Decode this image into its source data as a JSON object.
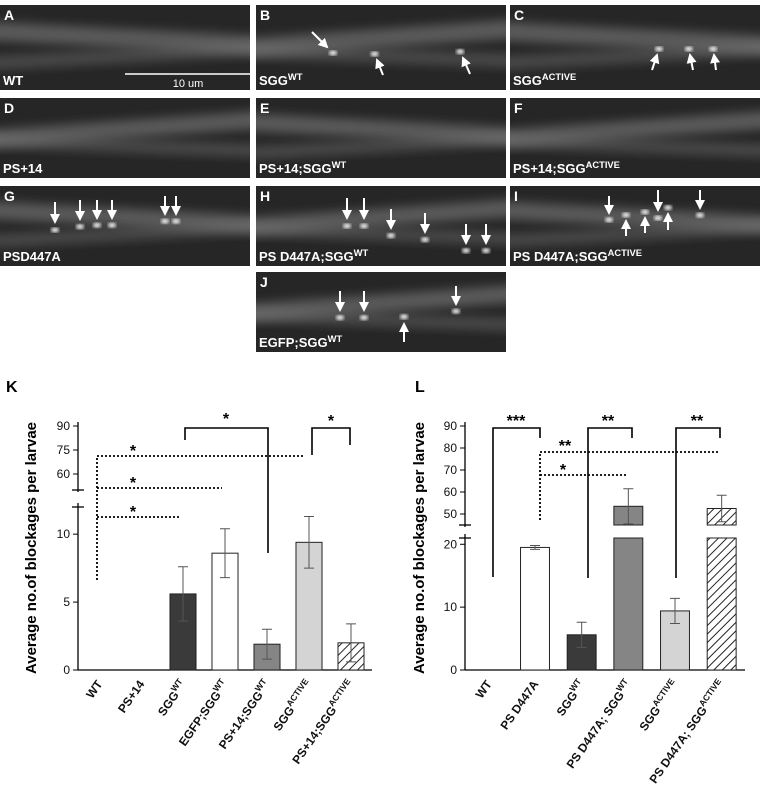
{
  "panels": [
    {
      "letter": "A",
      "label": {
        "text": "WT"
      },
      "scale_bar": "10 um"
    },
    {
      "letter": "B",
      "label": {
        "text": "SGG",
        "sup": "WT"
      }
    },
    {
      "letter": "C",
      "label": {
        "text": "SGG",
        "sup": "ACTIVE"
      }
    },
    {
      "letter": "D",
      "label": {
        "text": "PS+14"
      }
    },
    {
      "letter": "E",
      "label": {
        "text": "PS+14;SGG",
        "sup": "WT"
      }
    },
    {
      "letter": "F",
      "label": {
        "text": "PS+14;SGG",
        "sup": "ACTIVE"
      }
    },
    {
      "letter": "G",
      "label": {
        "text": "PSD447A"
      }
    },
    {
      "letter": "H",
      "label": {
        "text": "PS D447A;SGG",
        "sup": "WT"
      }
    },
    {
      "letter": "I",
      "label": {
        "text": "PS D447A;SGG",
        "sup": "ACTIVE"
      }
    },
    {
      "letter": "J",
      "label": {
        "text": "EGFP;SGG",
        "sup": "WT"
      }
    }
  ],
  "chart_data": [
    {
      "type": "bar",
      "panel_letter": "K",
      "y_label": "Average no.of blockages per larvae",
      "categories": [
        {
          "text": "WT"
        },
        {
          "text": "PS+14"
        },
        {
          "text": "SGG",
          "sup": "WT"
        },
        {
          "text": "EGFP;SGG",
          "sup": "WT"
        },
        {
          "text": "PS+14;SGG",
          "sup": "WT"
        },
        {
          "text": "SGG",
          "sup": "ACTIVE"
        },
        {
          "text": "PS+14;SGG",
          "sup": "ACTIVE"
        }
      ],
      "values": [
        0,
        0,
        5.6,
        8.6,
        1.9,
        9.4,
        2.0
      ],
      "errors": [
        null,
        null,
        2.0,
        1.8,
        1.1,
        1.9,
        1.4
      ],
      "colors": [
        "#ffffff",
        "#ffffff",
        "#3a3a3a",
        "#ffffff",
        "#858585",
        "#d4d4d4",
        "hatch"
      ],
      "axis_segments": [
        {
          "ylim": [
            0,
            12
          ],
          "yticks": [
            0,
            5,
            10
          ]
        },
        {
          "ylim": [
            50,
            90
          ],
          "yticks": [
            60,
            75,
            90
          ]
        }
      ],
      "annotations": [
        "*",
        "*",
        "*",
        "*",
        "*"
      ]
    },
    {
      "type": "bar",
      "panel_letter": "L",
      "y_label": "Average no.of blockages per larvae",
      "categories": [
        {
          "text": "WT"
        },
        {
          "text": "PS D447A"
        },
        {
          "text": "SGG",
          "sup": "WT"
        },
        {
          "text": "PS D447A; SGG",
          "sup": "WT"
        },
        {
          "text": "SGG",
          "sup": "ACTIVE"
        },
        {
          "text": "PS D447A; SGG",
          "sup": "ACTIVE"
        }
      ],
      "values": [
        0,
        19.5,
        5.6,
        53.5,
        9.4,
        52.5
      ],
      "errors": [
        null,
        0.3,
        2.0,
        8.0,
        2.0,
        6.0
      ],
      "colors": [
        "#ffffff",
        "#ffffff",
        "#3a3a3a",
        "#858585",
        "#d4d4d4",
        "hatch"
      ],
      "axis_segments": [
        {
          "ylim": [
            0,
            21
          ],
          "yticks": [
            0,
            10,
            20
          ]
        },
        {
          "ylim": [
            45,
            90
          ],
          "yticks": [
            50,
            60,
            70,
            80,
            90
          ]
        }
      ],
      "annotations": [
        "***",
        "**",
        "**",
        "**",
        "*"
      ]
    }
  ]
}
